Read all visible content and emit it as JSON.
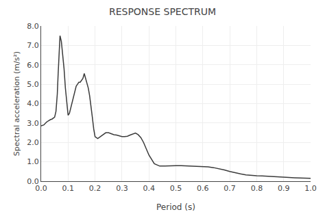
{
  "chart_data": {
    "type": "line",
    "title": "RESPONSE SPECTRUM",
    "x_label": "Period (s)",
    "y_label": "Spectral acceleration (m/s²)",
    "x": [
      0.0,
      0.01,
      0.02,
      0.025,
      0.03,
      0.035,
      0.04,
      0.045,
      0.05,
      0.055,
      0.06,
      0.063,
      0.065,
      0.067,
      0.07,
      0.075,
      0.08,
      0.085,
      0.09,
      0.095,
      0.1,
      0.105,
      0.11,
      0.115,
      0.12,
      0.125,
      0.13,
      0.135,
      0.14,
      0.145,
      0.15,
      0.155,
      0.16,
      0.165,
      0.17,
      0.175,
      0.18,
      0.185,
      0.19,
      0.195,
      0.2,
      0.21,
      0.22,
      0.23,
      0.24,
      0.25,
      0.26,
      0.27,
      0.28,
      0.29,
      0.3,
      0.31,
      0.32,
      0.33,
      0.34,
      0.35,
      0.36,
      0.37,
      0.38,
      0.39,
      0.4,
      0.42,
      0.44,
      0.46,
      0.48,
      0.5,
      0.52,
      0.54,
      0.56,
      0.58,
      0.6,
      0.62,
      0.64,
      0.66,
      0.68,
      0.7,
      0.72,
      0.74,
      0.76,
      0.78,
      0.8,
      0.82,
      0.84,
      0.86,
      0.88,
      0.9,
      0.92,
      0.94,
      0.96,
      0.98,
      1.0
    ],
    "values": [
      2.85,
      2.9,
      3.05,
      3.1,
      3.15,
      3.18,
      3.2,
      3.25,
      3.3,
      3.6,
      4.5,
      5.5,
      6.2,
      7.0,
      7.5,
      7.2,
      6.5,
      5.8,
      4.8,
      4.0,
      3.4,
      3.5,
      3.8,
      4.1,
      4.4,
      4.7,
      4.9,
      5.0,
      5.1,
      5.1,
      5.2,
      5.3,
      5.55,
      5.3,
      5.1,
      4.8,
      4.4,
      3.9,
      3.3,
      2.7,
      2.3,
      2.2,
      2.3,
      2.4,
      2.5,
      2.5,
      2.45,
      2.4,
      2.38,
      2.35,
      2.3,
      2.3,
      2.32,
      2.38,
      2.42,
      2.48,
      2.4,
      2.25,
      2.0,
      1.7,
      1.35,
      0.9,
      0.78,
      0.78,
      0.8,
      0.8,
      0.8,
      0.79,
      0.79,
      0.78,
      0.77,
      0.74,
      0.7,
      0.65,
      0.58,
      0.5,
      0.43,
      0.38,
      0.33,
      0.3,
      0.28,
      0.27,
      0.25,
      0.23,
      0.21,
      0.2,
      0.19,
      0.18,
      0.17,
      0.16,
      0.15
    ],
    "color": "#3a3a3a",
    "xlim": [
      0.0,
      1.0
    ],
    "ylim": [
      0.0,
      8.0
    ],
    "xticks": [
      {
        "value": 0.0,
        "label": "0.0"
      },
      0.1,
      0.2,
      0.3,
      0.4,
      0.5,
      0.6,
      0.7,
      0.8,
      0.9,
      {
        "value": 1.0,
        "label": "1.0"
      }
    ],
    "yticks": [
      {
        "value": 0.0,
        "label": "0.0"
      },
      {
        "value": 1.0,
        "label": "1.0"
      },
      {
        "value": 2.0,
        "label": "2.0"
      },
      {
        "value": 3.0,
        "label": "3.0"
      },
      {
        "value": 4.0,
        "label": "4.0"
      },
      {
        "value": 5.0,
        "label": "5.0"
      },
      {
        "value": 6.0,
        "label": "6.0"
      },
      {
        "value": 7.0,
        "label": "7.0"
      },
      {
        "value": 8.0,
        "label": "8.0"
      }
    ],
    "grid": true
  }
}
